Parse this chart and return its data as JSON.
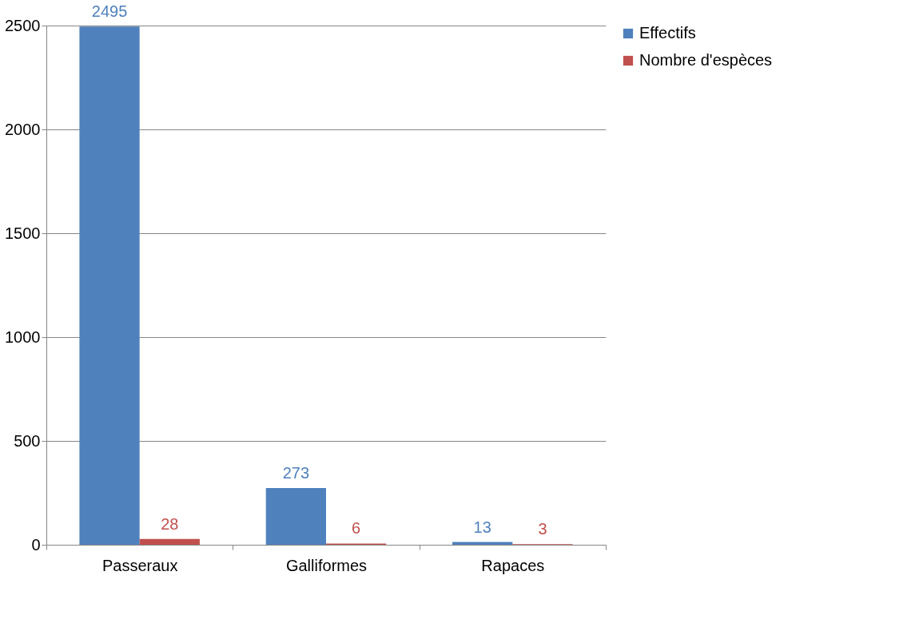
{
  "chart_data": {
    "type": "bar",
    "categories": [
      "Passeraux",
      "Galliformes",
      "Rapaces"
    ],
    "series": [
      {
        "name": "Effectifs",
        "color": "#4f81bd",
        "values": [
          2495,
          273,
          13
        ]
      },
      {
        "name": "Nombre d'espèces",
        "color": "#c0504d",
        "values": [
          28,
          6,
          3
        ]
      }
    ],
    "ylim": [
      0,
      2500
    ],
    "yticks": [
      0,
      500,
      1000,
      1500,
      2000,
      2500
    ],
    "grid": "y",
    "legend": "right",
    "data_labels": true
  }
}
